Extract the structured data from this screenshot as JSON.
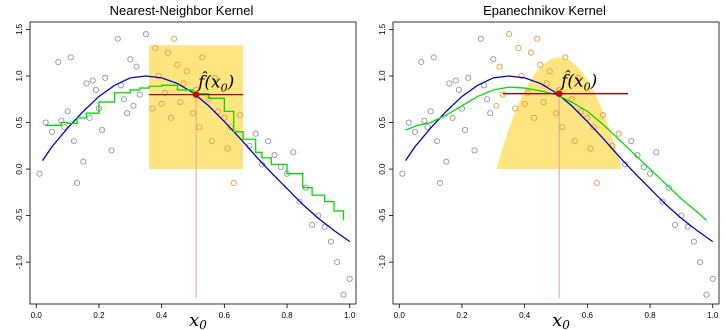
{
  "chart_data": [
    {
      "type": "scatter",
      "title": "Nearest-Neighbor Kernel",
      "xlabel": "",
      "ylabel": "",
      "xlim": [
        -0.02,
        1.02
      ],
      "ylim": [
        -1.45,
        1.58
      ],
      "x_ticks": [
        0.0,
        0.2,
        0.4,
        0.6,
        0.8,
        1.0
      ],
      "x_tick_labels": [
        "0.0",
        "0.2",
        "0.4",
        "0.6",
        "0.8",
        "1.0"
      ],
      "y_ticks": [
        -1.0,
        -0.5,
        0.0,
        0.5,
        1.0,
        1.5
      ],
      "y_tick_labels": [
        "-1.0",
        "-0.5",
        "0.0",
        "0.5",
        "1.0",
        "1.5"
      ],
      "x0": 0.51,
      "x0_label": "x",
      "x0_subscript": "0",
      "fhat": 0.8,
      "fhat_label": "f̂(x",
      "fhat_subscript": "0",
      "fhat_close": ")",
      "kernel": {
        "shape": "box",
        "x_start": 0.36,
        "x_end": 0.66,
        "height": 1.33
      },
      "fit_segment": [
        0.36,
        0.66
      ],
      "colors": {
        "in_window": "#ee9a3a",
        "out_window": "#8c96b0",
        "true_curve": "#0000cc",
        "fit_curve": "#00dd00",
        "kernel_fill": "#ffe480",
        "x0_line": "#e8a0a0",
        "fit_point": "#cc0000"
      },
      "true_curve": {
        "x": [
          0.02,
          0.05,
          0.1,
          0.15,
          0.2,
          0.25,
          0.3,
          0.35,
          0.4,
          0.45,
          0.5,
          0.55,
          0.6,
          0.65,
          0.7,
          0.75,
          0.8,
          0.85,
          0.9,
          0.95,
          1.0
        ],
        "y": [
          0.09,
          0.24,
          0.44,
          0.62,
          0.78,
          0.9,
          0.98,
          1.0,
          0.98,
          0.92,
          0.82,
          0.68,
          0.51,
          0.33,
          0.14,
          -0.04,
          -0.21,
          -0.38,
          -0.53,
          -0.66,
          -0.78
        ]
      },
      "fit_curve": {
        "x": [
          0.03,
          0.08,
          0.1,
          0.13,
          0.16,
          0.2,
          0.25,
          0.3,
          0.33,
          0.36,
          0.4,
          0.45,
          0.5,
          0.55,
          0.6,
          0.63,
          0.66,
          0.7,
          0.72,
          0.75,
          0.8,
          0.85,
          0.88,
          0.92,
          0.95,
          0.98
        ],
        "y": [
          0.47,
          0.5,
          0.49,
          0.55,
          0.6,
          0.72,
          0.82,
          0.85,
          0.87,
          0.89,
          0.9,
          0.85,
          0.81,
          0.76,
          0.62,
          0.4,
          0.32,
          0.18,
          0.12,
          0.05,
          -0.05,
          -0.2,
          -0.28,
          -0.35,
          -0.45,
          -0.55
        ]
      },
      "points": {
        "x": [
          0.01,
          0.03,
          0.05,
          0.07,
          0.08,
          0.09,
          0.1,
          0.11,
          0.12,
          0.13,
          0.15,
          0.16,
          0.17,
          0.18,
          0.19,
          0.2,
          0.21,
          0.22,
          0.24,
          0.26,
          0.27,
          0.28,
          0.29,
          0.3,
          0.31,
          0.32,
          0.33,
          0.35,
          0.37,
          0.38,
          0.39,
          0.4,
          0.41,
          0.42,
          0.43,
          0.44,
          0.45,
          0.46,
          0.47,
          0.48,
          0.5,
          0.51,
          0.52,
          0.53,
          0.55,
          0.56,
          0.57,
          0.58,
          0.6,
          0.61,
          0.62,
          0.63,
          0.65,
          0.68,
          0.7,
          0.72,
          0.74,
          0.76,
          0.78,
          0.8,
          0.82,
          0.84,
          0.86,
          0.88,
          0.9,
          0.92,
          0.94,
          0.96,
          0.98,
          1.0
        ],
        "y": [
          -0.05,
          0.5,
          0.4,
          1.15,
          0.52,
          0.45,
          0.62,
          1.2,
          0.3,
          -0.15,
          0.08,
          0.92,
          0.55,
          0.95,
          0.85,
          0.65,
          0.42,
          0.98,
          0.2,
          1.4,
          0.9,
          0.75,
          0.6,
          1.18,
          0.68,
          1.1,
          0.8,
          1.45,
          0.65,
          1.3,
          1.0,
          0.7,
          0.82,
          1.25,
          0.55,
          1.4,
          1.12,
          0.72,
          0.92,
          1.05,
          0.6,
          0.85,
          0.45,
          1.2,
          0.75,
          0.3,
          0.98,
          0.62,
          0.55,
          0.22,
          0.45,
          -0.15,
          0.58,
          0.25,
          0.38,
          0.05,
          0.3,
          0.15,
          0.02,
          -0.05,
          0.18,
          -0.35,
          -0.2,
          -0.6,
          -0.5,
          -0.62,
          -0.78,
          -1.0,
          -1.35,
          -1.18
        ]
      }
    },
    {
      "type": "scatter",
      "title": "Epanechnikov Kernel",
      "xlabel": "",
      "ylabel": "",
      "xlim": [
        -0.02,
        1.02
      ],
      "ylim": [
        -1.45,
        1.58
      ],
      "x_ticks": [
        0.0,
        0.2,
        0.4,
        0.6,
        0.8,
        1.0
      ],
      "x_tick_labels": [
        "0.0",
        "0.2",
        "0.4",
        "0.6",
        "0.8",
        "1.0"
      ],
      "y_ticks": [
        -1.0,
        -0.5,
        0.0,
        0.5,
        1.0,
        1.5
      ],
      "y_tick_labels": [
        "-1.0",
        "-0.5",
        "0.0",
        "0.5",
        "1.0",
        "1.5"
      ],
      "x0": 0.51,
      "x0_label": "x",
      "x0_subscript": "0",
      "fhat": 0.81,
      "fhat_label": "f̂(x",
      "fhat_subscript": "0",
      "fhat_close": ")",
      "kernel": {
        "shape": "epanechnikov",
        "x_start": 0.31,
        "x_end": 0.71,
        "height": 1.2
      },
      "fit_segment": [
        0.33,
        0.73
      ],
      "colors": {
        "in_window": "#ee9a3a",
        "out_window": "#8c96b0",
        "true_curve": "#0000cc",
        "fit_curve": "#00dd00",
        "kernel_fill": "#ffe480",
        "x0_line": "#e8a0a0",
        "fit_point": "#cc0000"
      },
      "true_curve": {
        "x": [
          0.02,
          0.05,
          0.1,
          0.15,
          0.2,
          0.25,
          0.3,
          0.35,
          0.4,
          0.45,
          0.5,
          0.55,
          0.6,
          0.65,
          0.7,
          0.75,
          0.8,
          0.85,
          0.9,
          0.95,
          1.0
        ],
        "y": [
          0.09,
          0.24,
          0.44,
          0.62,
          0.78,
          0.9,
          0.98,
          1.0,
          0.98,
          0.92,
          0.82,
          0.68,
          0.51,
          0.33,
          0.14,
          -0.04,
          -0.21,
          -0.38,
          -0.53,
          -0.66,
          -0.78
        ]
      },
      "fit_curve": {
        "x": [
          0.02,
          0.06,
          0.1,
          0.15,
          0.2,
          0.25,
          0.3,
          0.35,
          0.4,
          0.45,
          0.5,
          0.55,
          0.6,
          0.65,
          0.7,
          0.75,
          0.8,
          0.85,
          0.9,
          0.95,
          0.98
        ],
        "y": [
          0.42,
          0.47,
          0.5,
          0.58,
          0.68,
          0.78,
          0.85,
          0.88,
          0.87,
          0.84,
          0.8,
          0.72,
          0.62,
          0.48,
          0.32,
          0.16,
          0.0,
          -0.16,
          -0.32,
          -0.46,
          -0.55
        ]
      },
      "points": {
        "x": [
          0.01,
          0.03,
          0.05,
          0.07,
          0.08,
          0.09,
          0.1,
          0.11,
          0.12,
          0.13,
          0.15,
          0.16,
          0.17,
          0.18,
          0.19,
          0.2,
          0.21,
          0.22,
          0.24,
          0.26,
          0.27,
          0.28,
          0.29,
          0.3,
          0.31,
          0.32,
          0.33,
          0.35,
          0.37,
          0.38,
          0.39,
          0.4,
          0.41,
          0.42,
          0.43,
          0.44,
          0.45,
          0.46,
          0.47,
          0.48,
          0.5,
          0.51,
          0.52,
          0.53,
          0.55,
          0.56,
          0.57,
          0.58,
          0.6,
          0.61,
          0.62,
          0.63,
          0.65,
          0.68,
          0.7,
          0.72,
          0.74,
          0.76,
          0.78,
          0.8,
          0.82,
          0.84,
          0.86,
          0.88,
          0.9,
          0.92,
          0.94,
          0.96,
          0.98,
          1.0
        ],
        "y": [
          -0.05,
          0.5,
          0.4,
          1.15,
          0.52,
          0.45,
          0.62,
          1.2,
          0.3,
          -0.15,
          0.08,
          0.92,
          0.55,
          0.95,
          0.85,
          0.65,
          0.42,
          0.98,
          0.2,
          1.4,
          0.9,
          0.75,
          0.6,
          1.18,
          0.68,
          1.1,
          0.8,
          1.45,
          0.65,
          1.3,
          1.0,
          0.7,
          0.82,
          1.25,
          0.55,
          1.4,
          1.12,
          0.72,
          0.92,
          1.05,
          0.6,
          0.85,
          0.45,
          1.2,
          0.75,
          0.3,
          0.98,
          0.62,
          0.55,
          0.22,
          0.45,
          -0.15,
          0.58,
          0.25,
          0.38,
          0.05,
          0.3,
          0.15,
          0.02,
          -0.05,
          0.18,
          -0.35,
          -0.2,
          -0.6,
          -0.5,
          -0.62,
          -0.78,
          -1.0,
          -1.35,
          -1.18
        ]
      }
    }
  ]
}
